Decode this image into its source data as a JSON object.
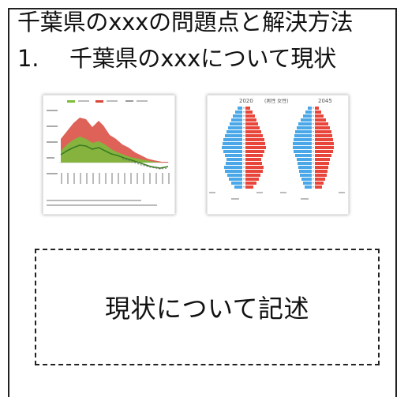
{
  "slide": {
    "title_line1": "千葉県のxxxの問題点と解決方法",
    "title_line2_num": "1.",
    "title_line2_text": "千葉県のxxxについて現状",
    "placeholder_text": "現状について記述"
  },
  "thumbnails": {
    "chart1": {
      "type": "area",
      "colors": {
        "green": "#7cbd3c",
        "red": "#d9473b",
        "dark_green": "#3a7d22",
        "gray": "#9a9a9a"
      }
    },
    "chart2": {
      "type": "bar",
      "top_labels": [
        "2020",
        "(男性 女性)",
        "2045"
      ],
      "colors": {
        "male": "#4aa8e8",
        "female": "#e8463b"
      }
    }
  }
}
